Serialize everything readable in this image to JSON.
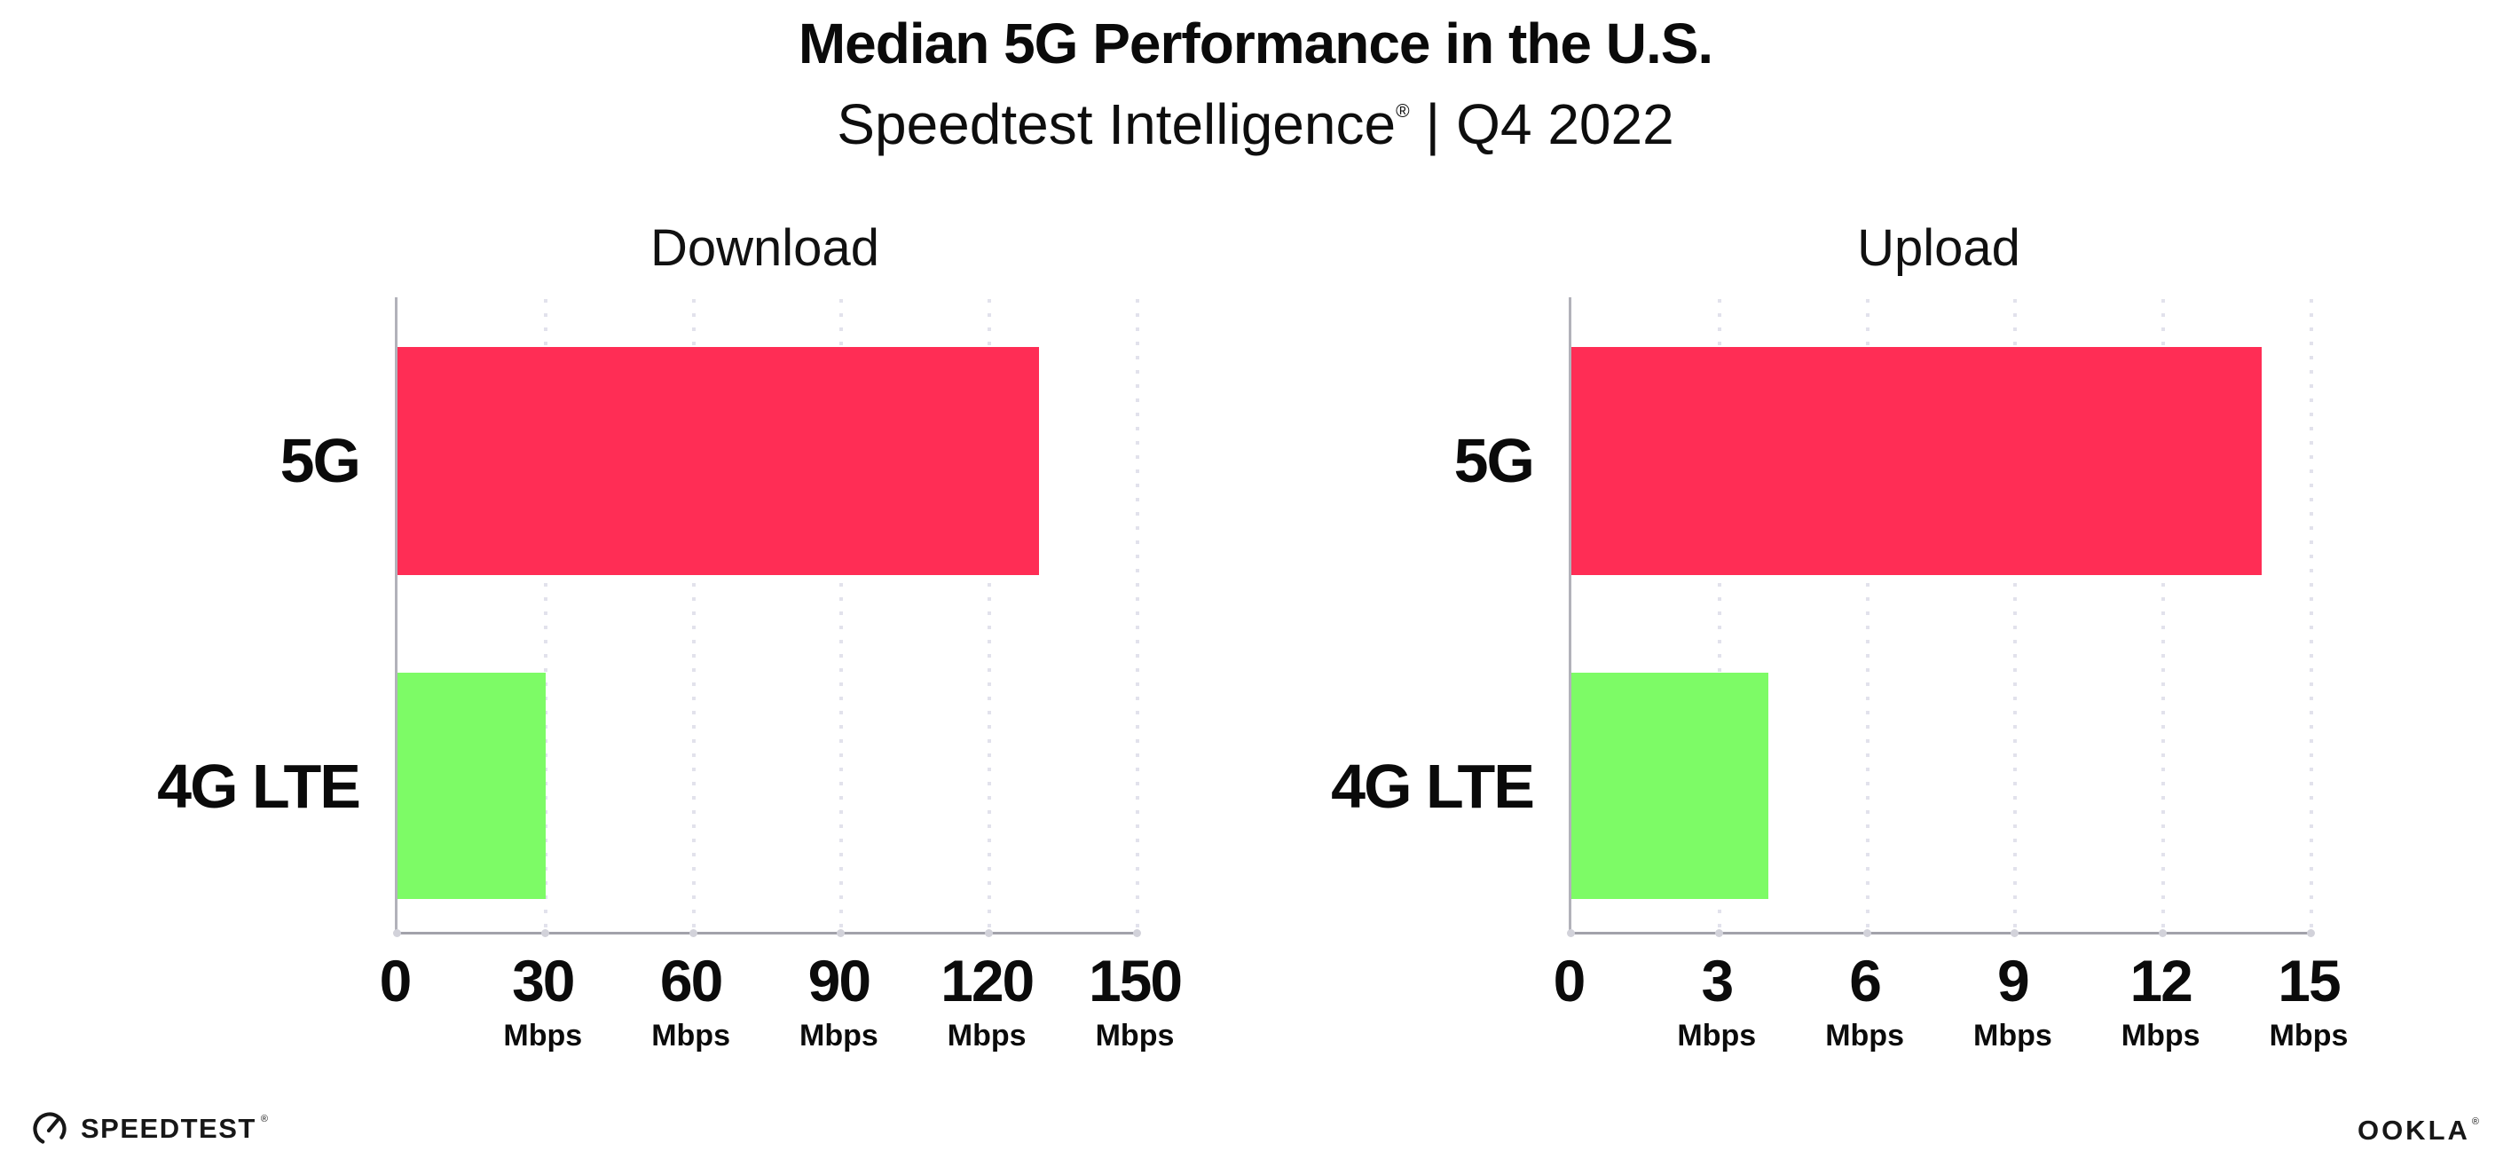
{
  "header": {
    "title": "Median 5G Performance in the U.S.",
    "subtitle_brand": "Speedtest Intelligence",
    "subtitle_trademark": "®",
    "subtitle_separator": "|",
    "subtitle_period": "Q4 2022"
  },
  "chart_data": [
    {
      "type": "bar",
      "orientation": "horizontal",
      "title": "Download",
      "categories": [
        "5G",
        "4G LTE"
      ],
      "values": [
        130,
        30
      ],
      "unit": "Mbps",
      "xlim": [
        0,
        150
      ],
      "xticks": [
        0,
        30,
        60,
        90,
        120,
        150
      ],
      "bar_colors": [
        "#ff2d55",
        "#7dfb66"
      ],
      "grid": "dotted-vertical",
      "legend": "none"
    },
    {
      "type": "bar",
      "orientation": "horizontal",
      "title": "Upload",
      "categories": [
        "5G",
        "4G LTE"
      ],
      "values": [
        14,
        4
      ],
      "unit": "Mbps",
      "xlim": [
        0,
        15
      ],
      "xticks": [
        0,
        3,
        6,
        9,
        12,
        15
      ],
      "bar_colors": [
        "#ff2d55",
        "#7dfb66"
      ],
      "grid": "dotted-vertical",
      "legend": "none"
    }
  ],
  "footer": {
    "speedtest_label": "SPEEDTEST",
    "speedtest_trademark": "®",
    "ookla_label": "OOKLA",
    "ookla_trademark": "®"
  },
  "colors": {
    "bar_5g": "#ff2d55",
    "bar_4g_lte": "#7dfb66",
    "gridline": "#e2e2ec",
    "axis": "#a2a2aa",
    "text": "#0d0d0d",
    "background": "#ffffff"
  }
}
